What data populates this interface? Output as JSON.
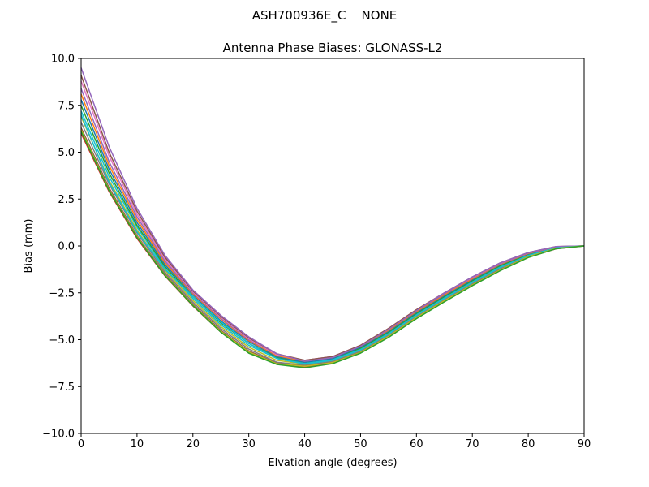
{
  "chart_data": {
    "type": "line",
    "suptitle": "ASH700936E_C    NONE",
    "title": "Antenna Phase Biases: GLONASS-L2",
    "xlabel": "Elvation angle (degrees)",
    "ylabel": "Bias (mm)",
    "xlim": [
      0,
      90
    ],
    "ylim": [
      -10,
      10
    ],
    "xticks": [
      0,
      10,
      20,
      30,
      40,
      50,
      60,
      70,
      80,
      90
    ],
    "yticks": [
      -10.0,
      -7.5,
      -5.0,
      -2.5,
      0.0,
      2.5,
      5.0,
      7.5,
      10.0
    ],
    "ytick_labels": [
      "−10.0",
      "−7.5",
      "−5.0",
      "−2.5",
      "0.0",
      "2.5",
      "5.0",
      "7.5",
      "10.0"
    ],
    "grid": false,
    "legend": "none",
    "x": [
      0,
      5,
      10,
      15,
      20,
      25,
      30,
      35,
      40,
      45,
      50,
      55,
      60,
      65,
      70,
      75,
      80,
      85,
      90
    ],
    "series": [
      {
        "color": "#d62728",
        "values": [
          6.0,
          2.9,
          0.4,
          -1.6,
          -3.2,
          -4.6,
          -5.7,
          -6.3,
          -6.45,
          -6.25,
          -5.7,
          -4.85,
          -3.85,
          -2.95,
          -2.1,
          -1.3,
          -0.6,
          -0.15,
          0.0
        ]
      },
      {
        "color": "#8c564b",
        "values": [
          6.3,
          3.1,
          0.55,
          -1.5,
          -3.1,
          -4.5,
          -5.6,
          -6.25,
          -6.4,
          -6.2,
          -5.65,
          -4.8,
          -3.8,
          -2.9,
          -2.05,
          -1.25,
          -0.55,
          -0.12,
          0.0
        ]
      },
      {
        "color": "#7f7f7f",
        "values": [
          6.6,
          3.3,
          0.7,
          -1.4,
          -3.0,
          -4.4,
          -5.5,
          -6.2,
          -6.35,
          -6.15,
          -5.6,
          -4.75,
          -3.75,
          -2.85,
          -2.0,
          -1.2,
          -0.52,
          -0.1,
          0.0
        ]
      },
      {
        "color": "#bcbd22",
        "values": [
          6.9,
          3.5,
          0.85,
          -1.3,
          -2.9,
          -4.3,
          -5.4,
          -6.1,
          -6.3,
          -6.1,
          -5.55,
          -4.7,
          -3.7,
          -2.8,
          -1.95,
          -1.15,
          -0.5,
          -0.1,
          0.0
        ]
      },
      {
        "color": "#17becf",
        "values": [
          7.2,
          3.7,
          1.0,
          -1.2,
          -2.8,
          -4.2,
          -5.3,
          -6.0,
          -6.25,
          -6.05,
          -5.5,
          -4.65,
          -3.65,
          -2.75,
          -1.9,
          -1.1,
          -0.48,
          -0.08,
          0.0
        ]
      },
      {
        "color": "#2ca02c",
        "values": [
          7.5,
          3.9,
          1.1,
          -1.1,
          -2.7,
          -4.1,
          -5.2,
          -5.95,
          -6.2,
          -6.0,
          -5.45,
          -4.6,
          -3.6,
          -2.7,
          -1.85,
          -1.05,
          -0.45,
          -0.08,
          0.0
        ]
      },
      {
        "color": "#1f77b4",
        "values": [
          7.8,
          4.1,
          1.25,
          -1.0,
          -2.6,
          -4.0,
          -5.1,
          -5.9,
          -6.2,
          -6.0,
          -5.4,
          -4.55,
          -3.55,
          -2.65,
          -1.8,
          -1.0,
          -0.42,
          -0.06,
          0.0
        ]
      },
      {
        "color": "#ff7f0e",
        "values": [
          8.1,
          4.3,
          1.4,
          -0.9,
          -2.55,
          -3.9,
          -5.05,
          -5.85,
          -6.15,
          -5.95,
          -5.35,
          -4.5,
          -3.5,
          -2.6,
          -1.75,
          -0.98,
          -0.4,
          -0.05,
          0.0
        ]
      },
      {
        "color": "#9467bd",
        "values": [
          8.4,
          4.5,
          1.55,
          -0.8,
          -2.5,
          -3.85,
          -5.0,
          -5.8,
          -6.1,
          -5.9,
          -5.3,
          -4.45,
          -3.45,
          -2.55,
          -1.7,
          -0.95,
          -0.38,
          -0.05,
          0.0
        ]
      },
      {
        "color": "#e377c2",
        "values": [
          8.8,
          4.8,
          1.7,
          -0.7,
          -2.45,
          -3.8,
          -4.95,
          -5.8,
          -6.1,
          -5.9,
          -5.3,
          -4.4,
          -3.4,
          -2.5,
          -1.68,
          -0.92,
          -0.36,
          -0.04,
          0.0
        ]
      },
      {
        "color": "#8c564b",
        "values": [
          9.1,
          5.0,
          1.85,
          -0.6,
          -2.4,
          -3.75,
          -4.9,
          -5.75,
          -6.1,
          -5.9,
          -5.3,
          -4.4,
          -3.4,
          -2.5,
          -1.65,
          -0.9,
          -0.35,
          -0.03,
          0.0
        ]
      },
      {
        "color": "#9467bd",
        "values": [
          9.5,
          5.3,
          2.0,
          -0.5,
          -2.35,
          -3.7,
          -4.85,
          -5.75,
          -6.15,
          -5.95,
          -5.35,
          -4.45,
          -3.45,
          -2.5,
          -1.65,
          -0.9,
          -0.35,
          -0.03,
          0.0
        ]
      },
      {
        "color": "#17becf",
        "values": [
          7.0,
          3.4,
          0.75,
          -1.25,
          -2.7,
          -4.05,
          -5.2,
          -6.0,
          -6.3,
          -6.1,
          -5.55,
          -4.7,
          -3.7,
          -2.8,
          -1.95,
          -1.15,
          -0.5,
          -0.1,
          0.0
        ]
      },
      {
        "color": "#bcbd22",
        "values": [
          6.2,
          3.0,
          0.5,
          -1.55,
          -3.15,
          -4.55,
          -5.65,
          -6.28,
          -6.42,
          -6.22,
          -5.68,
          -4.82,
          -3.82,
          -2.92,
          -2.08,
          -1.28,
          -0.58,
          -0.13,
          0.0
        ]
      },
      {
        "color": "#2ca02c",
        "values": [
          6.1,
          2.95,
          0.45,
          -1.58,
          -3.18,
          -4.6,
          -5.72,
          -6.32,
          -6.5,
          -6.28,
          -5.72,
          -4.88,
          -3.88,
          -2.98,
          -2.12,
          -1.32,
          -0.62,
          -0.15,
          0.0
        ]
      }
    ]
  }
}
